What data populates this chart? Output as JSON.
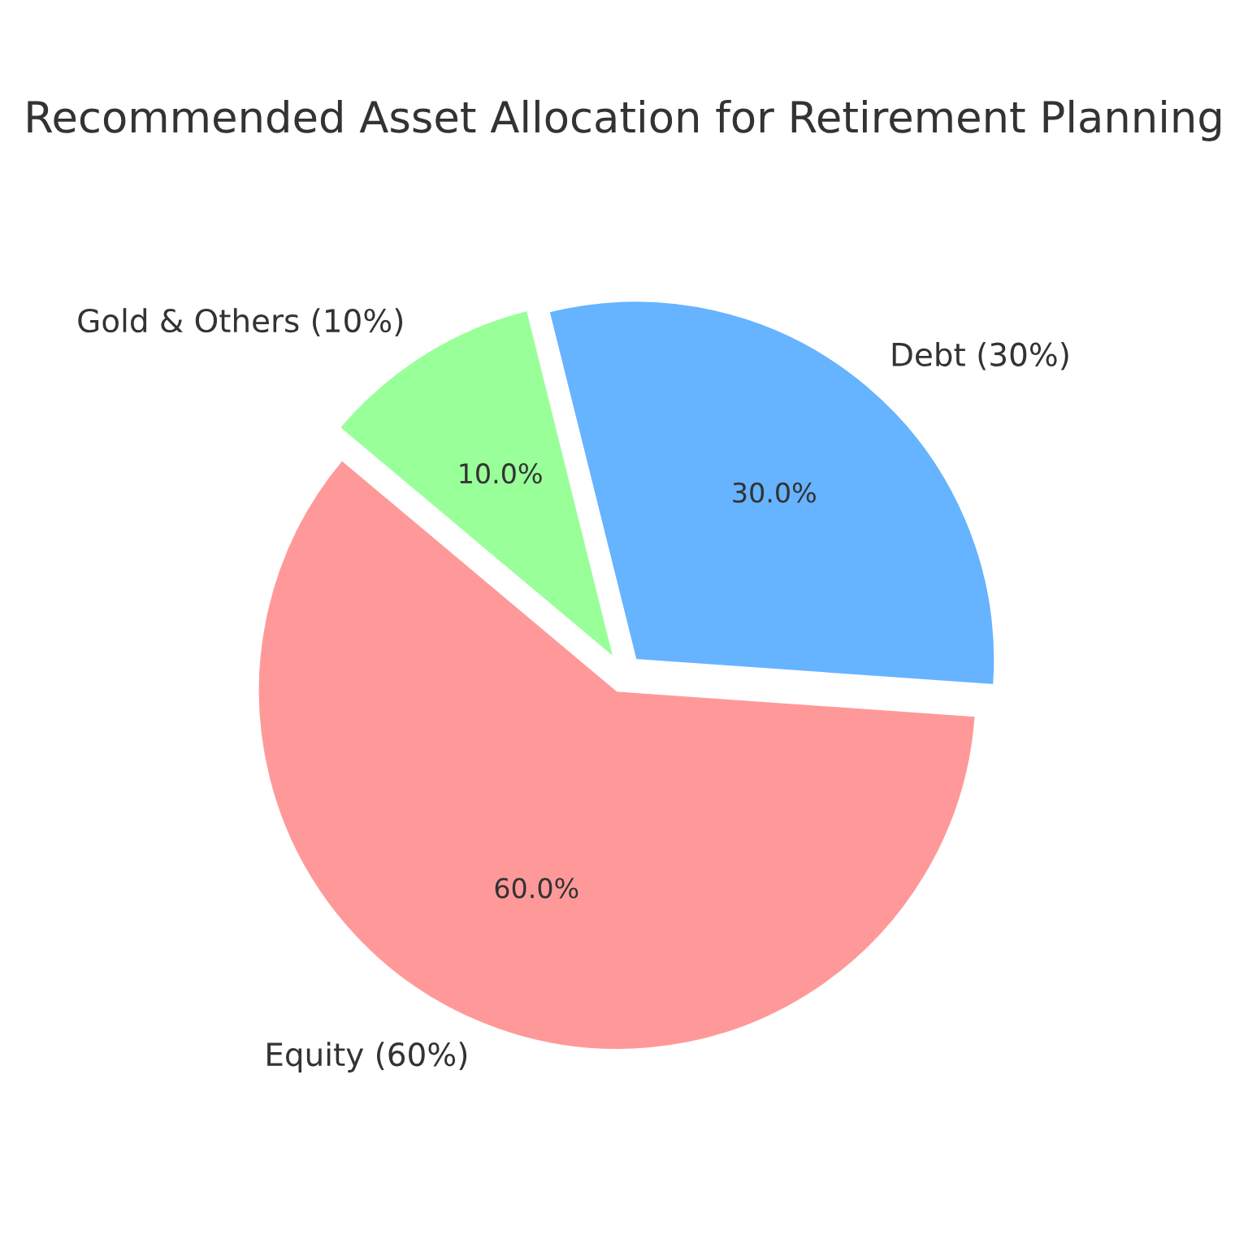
{
  "chart_data": {
    "type": "pie",
    "title": "Recommended Asset Allocation for Retirement Planning",
    "categories": [
      "Equity (60%)",
      "Debt (30%)",
      "Gold & Others (10%)"
    ],
    "values": [
      60,
      30,
      10
    ],
    "colors": [
      "#ff9999",
      "#66b3ff",
      "#99ff99"
    ],
    "value_labels": [
      "60.0%",
      "30.0%",
      "10.0%"
    ]
  }
}
